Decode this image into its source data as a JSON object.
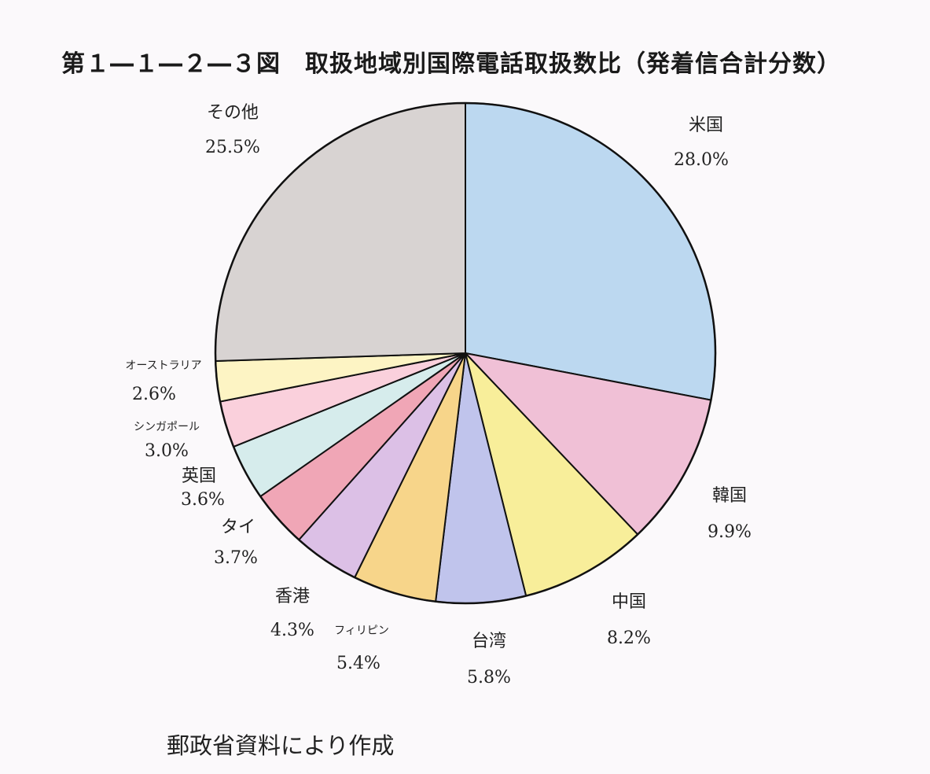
{
  "title": "第１―１―２―３図　取扱地域別国際電話取扱数比（発着信合計分数）",
  "source": "郵政省資料により作成",
  "chart_data": {
    "type": "pie",
    "unit": "%",
    "start": "12 o'clock, clockwise",
    "slices": [
      {
        "name": "米国",
        "value": 28.0,
        "label": "28.0%",
        "color": "#bcd8f0"
      },
      {
        "name": "韓国",
        "value": 9.9,
        "label": "9.9%",
        "color": "#f0c0d6"
      },
      {
        "name": "中国",
        "value": 8.2,
        "label": "8.2%",
        "color": "#f8ee9a"
      },
      {
        "name": "台湾",
        "value": 5.8,
        "label": "5.8%",
        "color": "#c0c4ec"
      },
      {
        "name": "フィリピン",
        "value": 5.4,
        "label": "5.4%",
        "color": "#f7d58a"
      },
      {
        "name": "香港",
        "value": 4.3,
        "label": "4.3%",
        "color": "#dcc0e6"
      },
      {
        "name": "タイ",
        "value": 3.7,
        "label": "3.7%",
        "color": "#f0a6b6"
      },
      {
        "name": "英国",
        "value": 3.6,
        "label": "3.6%",
        "color": "#d6ecec"
      },
      {
        "name": "シンガポール",
        "value": 3.0,
        "label": "3.0%",
        "color": "#fad0dc"
      },
      {
        "name": "オーストラリア",
        "value": 2.6,
        "label": "2.6%",
        "color": "#fdf4c4"
      },
      {
        "name": "その他",
        "value": 25.5,
        "label": "25.5%",
        "color": "#d8d3d2"
      }
    ]
  }
}
